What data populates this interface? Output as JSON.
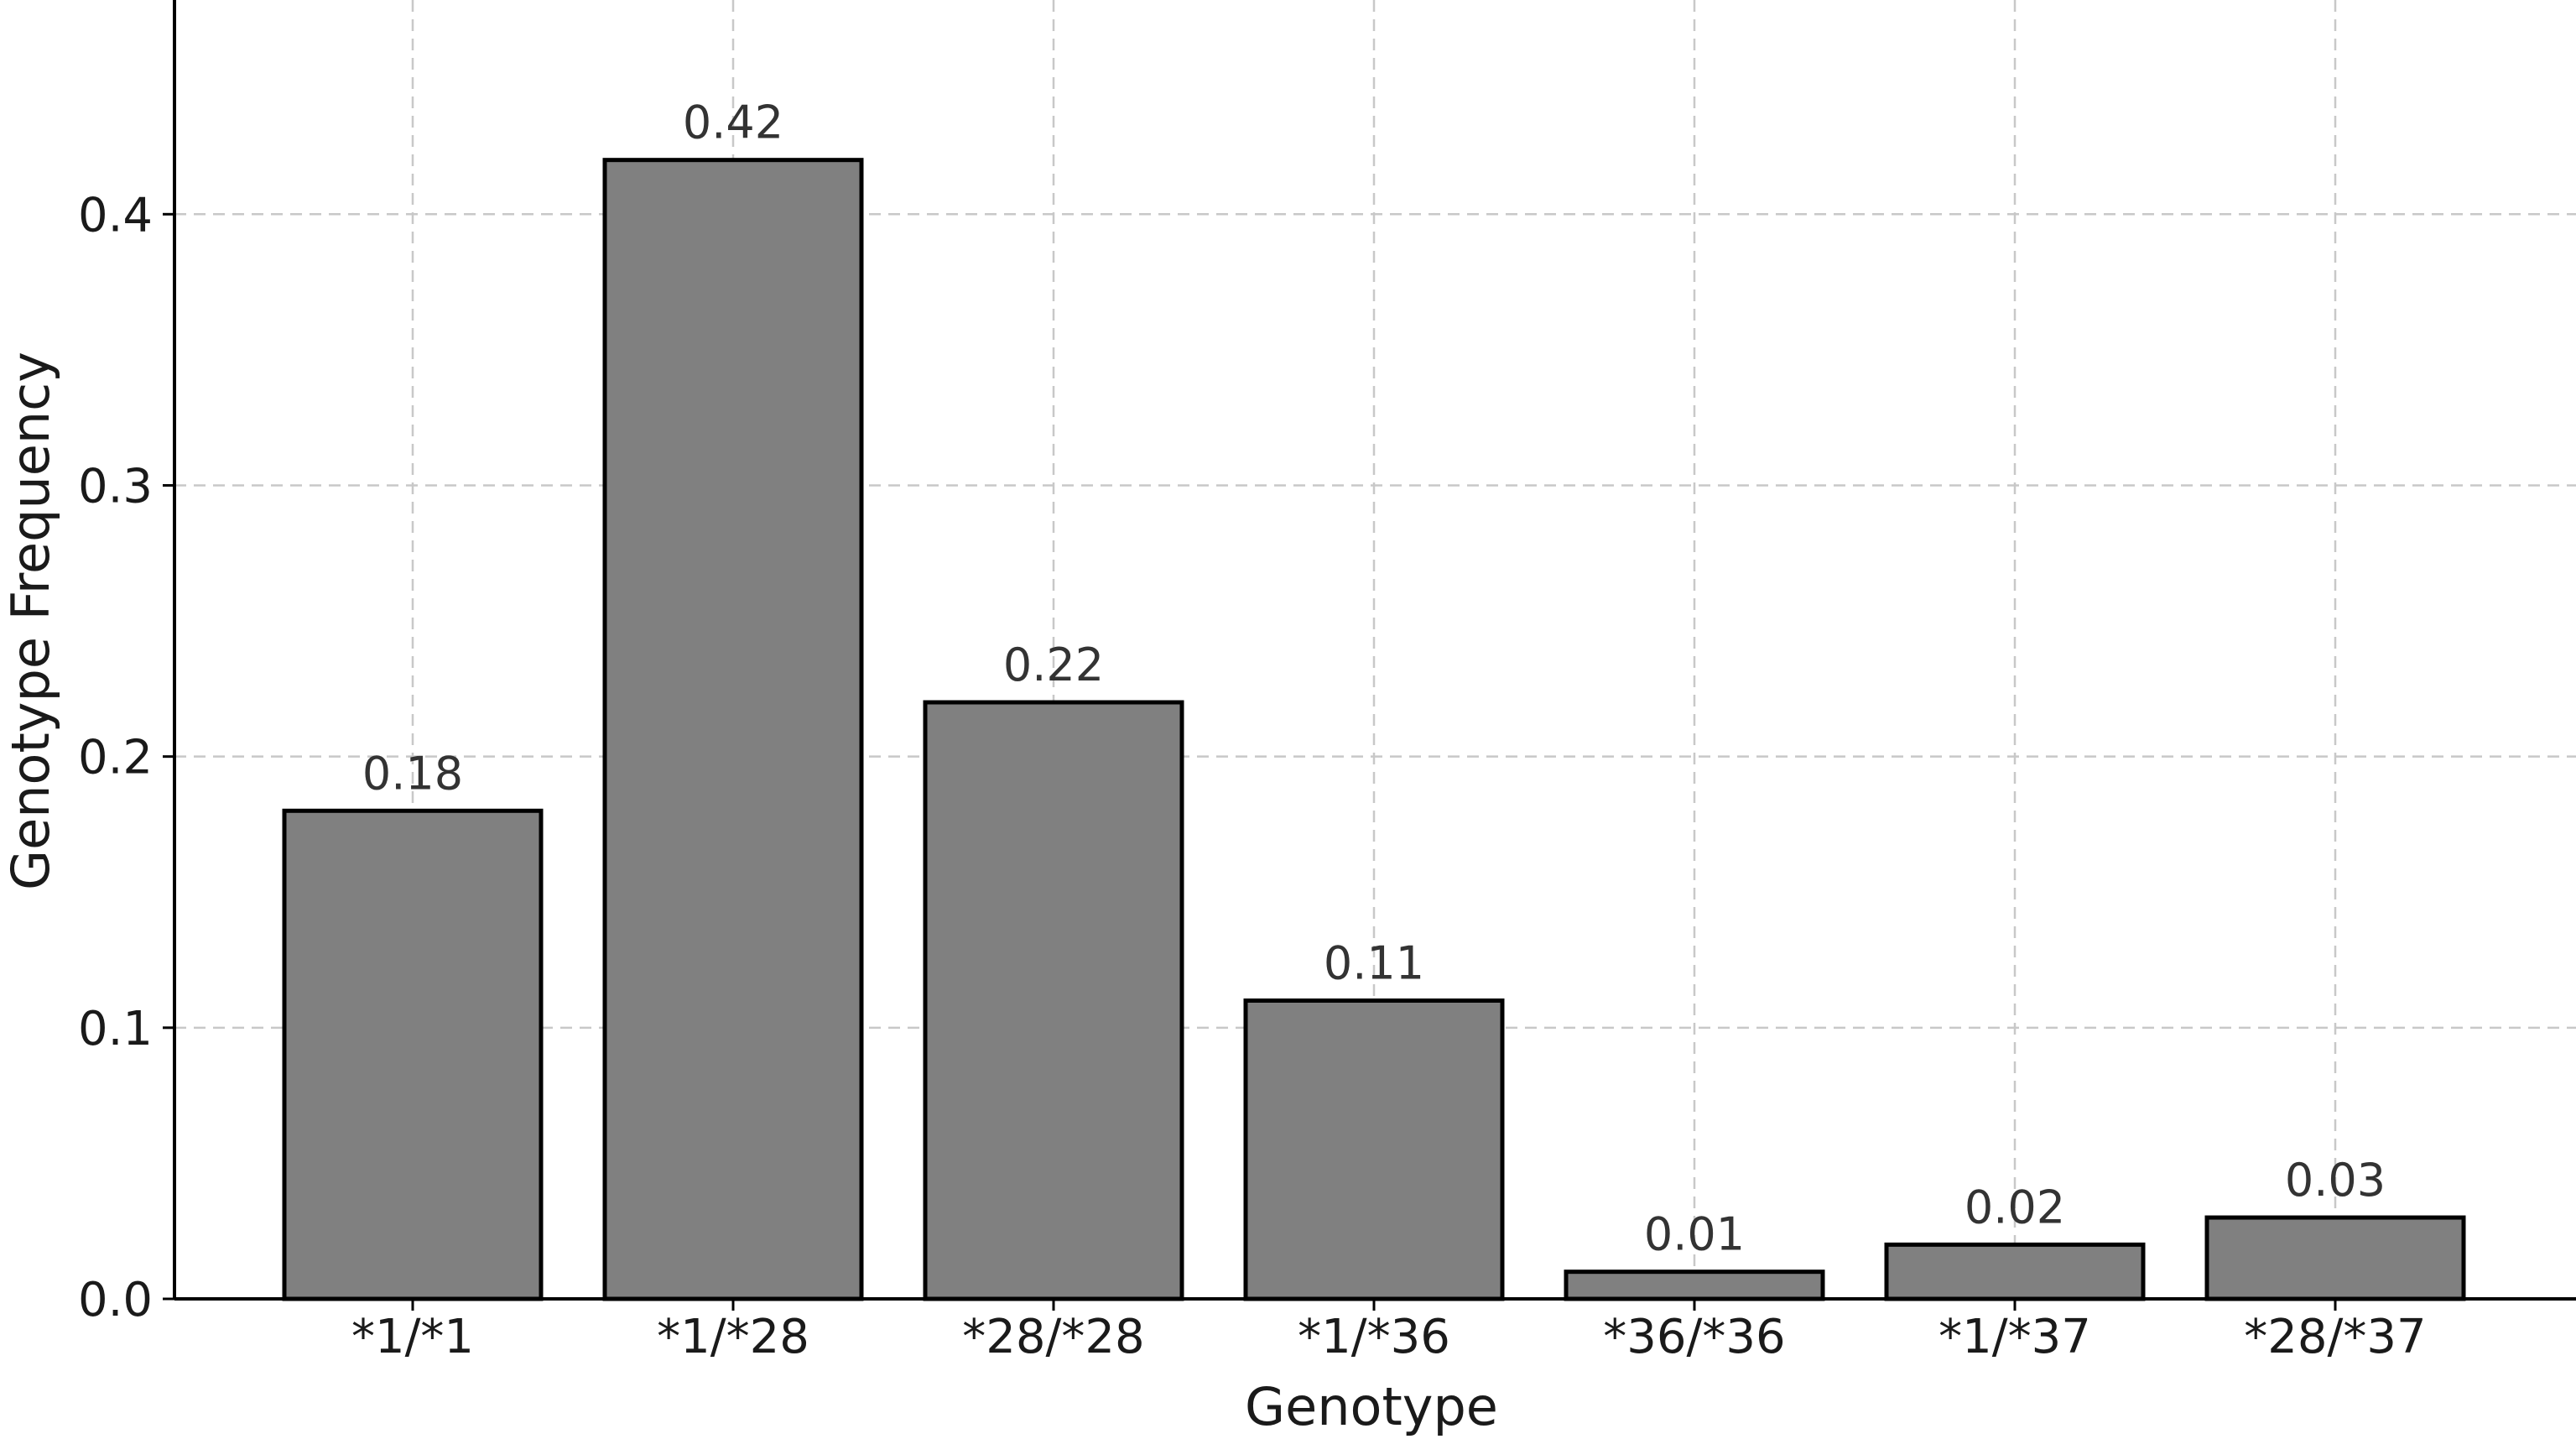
{
  "chart_data": {
    "type": "bar",
    "xlabel": "Genotype",
    "ylabel": "Genotype Frequency",
    "categories": [
      "*1/*1",
      "*1/*28",
      "*28/*28",
      "*1/*36",
      "*36/*36",
      "*1/*37",
      "*28/*37"
    ],
    "values": [
      0.18,
      0.42,
      0.22,
      0.11,
      0.01,
      0.02,
      0.03
    ],
    "value_labels": [
      "0.18",
      "0.42",
      "0.22",
      "0.11",
      "0.01",
      "0.02",
      "0.03"
    ],
    "y_ticks": [
      0.0,
      0.1,
      0.2,
      0.3,
      0.4
    ],
    "y_tick_labels": [
      "0.0",
      "0.1",
      "0.2",
      "0.3",
      "0.4"
    ],
    "ylim": [
      0,
      0.479
    ],
    "grid": true,
    "bar_color": "#808080",
    "bar_edge_color": "#000000"
  }
}
